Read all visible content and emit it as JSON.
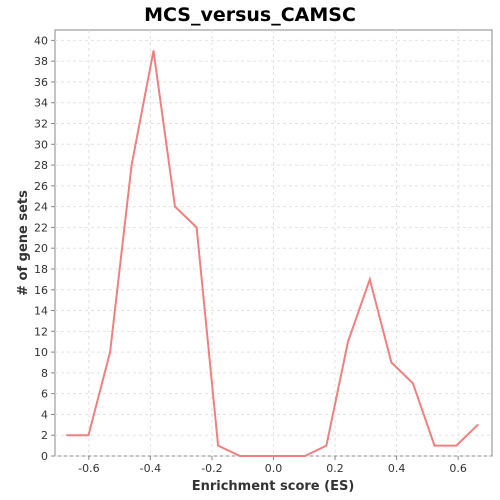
{
  "chart_data": {
    "type": "line",
    "title": "MCS_versus_CAMSC",
    "xlabel": "Enrichment score (ES)",
    "ylabel": "# of gene sets",
    "xlim": [
      -0.71,
      0.71
    ],
    "ylim": [
      0,
      41
    ],
    "x_ticks": [
      -0.6,
      -0.4,
      -0.2,
      0.0,
      0.2,
      0.4,
      0.6
    ],
    "x_tick_labels": [
      "-0.6",
      "-0.4",
      "-0.2",
      "0.0",
      "0.2",
      "0.4",
      "0.6"
    ],
    "y_ticks": [
      0,
      2,
      4,
      6,
      8,
      10,
      12,
      14,
      16,
      18,
      20,
      22,
      24,
      26,
      28,
      30,
      32,
      34,
      36,
      38,
      40
    ],
    "y_tick_labels": [
      "0",
      "2",
      "4",
      "6",
      "8",
      "10",
      "12",
      "14",
      "16",
      "18",
      "20",
      "22",
      "24",
      "26",
      "28",
      "30",
      "32",
      "34",
      "36",
      "38",
      "40"
    ],
    "grid": true,
    "legend": "none",
    "series": [
      {
        "color": "#f08080",
        "points": [
          [
            -0.672,
            2
          ],
          [
            -0.601,
            2
          ],
          [
            -0.531,
            10
          ],
          [
            -0.461,
            28
          ],
          [
            -0.39,
            39
          ],
          [
            -0.32,
            24
          ],
          [
            -0.25,
            22
          ],
          [
            -0.18,
            1
          ],
          [
            -0.109,
            0
          ],
          [
            -0.039,
            0
          ],
          [
            0.031,
            0
          ],
          [
            0.102,
            0
          ],
          [
            0.172,
            1
          ],
          [
            0.242,
            11
          ],
          [
            0.313,
            17
          ],
          [
            0.383,
            9
          ],
          [
            0.453,
            7
          ],
          [
            0.523,
            1
          ],
          [
            0.594,
            1
          ],
          [
            0.664,
            3
          ]
        ]
      }
    ]
  }
}
